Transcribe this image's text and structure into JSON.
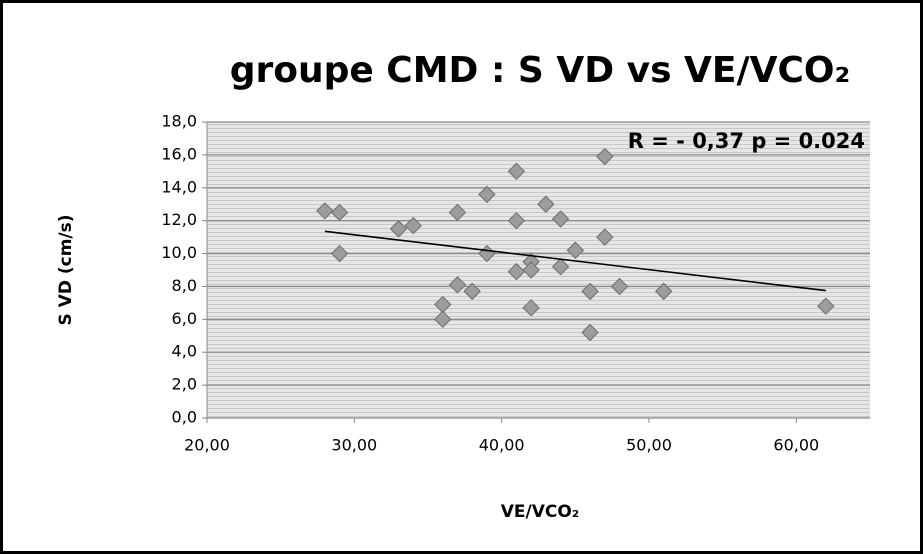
{
  "chart_data": {
    "type": "scatter",
    "title": "groupe CMD : S VD vs VE/VCO₂",
    "x_label": "VE/VCO₂",
    "y_label": "S VD (cm/s)",
    "annotation": "R = - 0,37 p = 0.024",
    "xlim": [
      20,
      65
    ],
    "xticks": [
      {
        "value": 20,
        "label": "20,00"
      },
      {
        "value": 30,
        "label": "30,00"
      },
      {
        "value": 40,
        "label": "40,00"
      },
      {
        "value": 50,
        "label": "50,00"
      },
      {
        "value": 60,
        "label": "60,00"
      }
    ],
    "ylim": [
      0,
      18
    ],
    "yticks": [
      {
        "value": 0,
        "label": "0,0"
      },
      {
        "value": 2,
        "label": "2,0"
      },
      {
        "value": 4,
        "label": "4,0"
      },
      {
        "value": 6,
        "label": "6,0"
      },
      {
        "value": 8,
        "label": "8,0"
      },
      {
        "value": 10,
        "label": "10,0"
      },
      {
        "value": 12,
        "label": "12,0"
      },
      {
        "value": 14,
        "label": "14,0"
      },
      {
        "value": 16,
        "label": "16,0"
      },
      {
        "value": 18,
        "label": "18,0"
      }
    ],
    "grid": true,
    "color": "#9c9c9c",
    "x": [
      28,
      29,
      29,
      33,
      34,
      36,
      36,
      37,
      37,
      38,
      39,
      39,
      41,
      41,
      41,
      42,
      42,
      42,
      43,
      44,
      44,
      45,
      46,
      46,
      47,
      47,
      48,
      51,
      62
    ],
    "values": [
      12.6,
      12.5,
      10.0,
      11.5,
      11.7,
      6.9,
      6.0,
      12.5,
      8.1,
      7.7,
      13.6,
      10.0,
      15.0,
      12.0,
      8.9,
      9.5,
      9.0,
      6.7,
      13.0,
      12.1,
      9.2,
      10.2,
      7.7,
      5.2,
      15.9,
      11.0,
      8.0,
      7.7,
      6.8
    ],
    "trend": {
      "x": [
        28,
        62
      ],
      "values": [
        11.35,
        7.75
      ],
      "color": "#000000"
    }
  }
}
